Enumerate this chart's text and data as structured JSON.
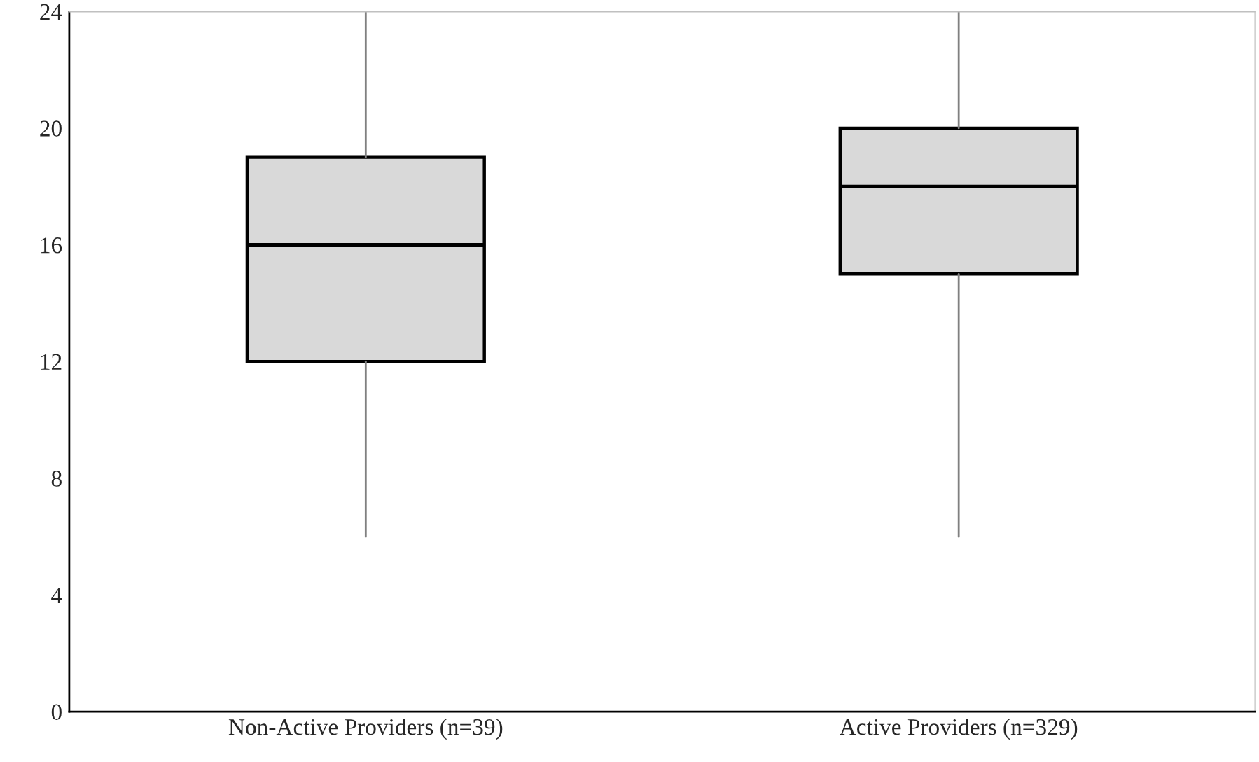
{
  "chart_data": {
    "type": "box",
    "categories": [
      "Non-Active Providers (n=39)",
      "Active Providers (n=329)"
    ],
    "boxes": [
      {
        "low": 6,
        "q1": 12,
        "median": 16,
        "q3": 19,
        "high": 24
      },
      {
        "low": 6,
        "q1": 15,
        "median": 18,
        "q3": 20,
        "high": 24
      }
    ],
    "color": "#d9d9d9",
    "ylim": [
      0,
      24
    ],
    "yticks": [
      0,
      4,
      8,
      12,
      16,
      20,
      24
    ],
    "grid": false
  }
}
